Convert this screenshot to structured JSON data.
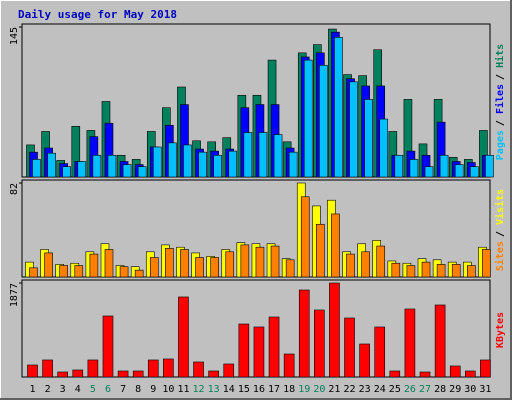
{
  "chart_data": [
    {
      "type": "bar",
      "title": "Daily usage for May 2018",
      "categories": [
        "1",
        "2",
        "3",
        "4",
        "5",
        "6",
        "7",
        "8",
        "9",
        "10",
        "11",
        "12",
        "13",
        "14",
        "15",
        "16",
        "17",
        "18",
        "19",
        "20",
        "21",
        "22",
        "23",
        "24",
        "25",
        "26",
        "27",
        "28",
        "29",
        "30",
        "31"
      ],
      "category_colors": [
        "#000000",
        "#000000",
        "#000000",
        "#000000",
        "#00805c",
        "#00805c",
        "#000000",
        "#000000",
        "#000000",
        "#000000",
        "#000000",
        "#00805c",
        "#00805c",
        "#000000",
        "#000000",
        "#000000",
        "#000000",
        "#000000",
        "#00805c",
        "#00805c",
        "#000000",
        "#000000",
        "#000000",
        "#000000",
        "#000000",
        "#00805c",
        "#00805c",
        "#000000",
        "#000000",
        "#000000",
        "#000000"
      ],
      "legend_separator": "/",
      "ylim": [
        0,
        145
      ],
      "yticks": [
        145
      ],
      "series": [
        {
          "name": "Hits",
          "color": "#00805c",
          "values": [
            31,
            44,
            16,
            49,
            45,
            73,
            21,
            17,
            44,
            67,
            87,
            35,
            34,
            38,
            79,
            79,
            113,
            34,
            120,
            128,
            143,
            99,
            98,
            123,
            44,
            75,
            32,
            75,
            19,
            17,
            45
          ]
        },
        {
          "name": "Files",
          "color": "#0000ff",
          "values": [
            24,
            28,
            13,
            15,
            39,
            52,
            15,
            12,
            29,
            50,
            70,
            27,
            25,
            27,
            67,
            70,
            70,
            28,
            116,
            120,
            140,
            95,
            88,
            88,
            21,
            25,
            21,
            53,
            15,
            14,
            21
          ]
        },
        {
          "name": "Pages",
          "color": "#00c0ff",
          "values": [
            17,
            23,
            10,
            15,
            21,
            21,
            12,
            10,
            29,
            33,
            31,
            24,
            21,
            25,
            43,
            43,
            41,
            24,
            113,
            108,
            135,
            92,
            75,
            56,
            21,
            17,
            10,
            21,
            12,
            10,
            21
          ]
        }
      ]
    },
    {
      "type": "bar",
      "ylim": [
        0,
        82
      ],
      "yticks": [
        82
      ],
      "series": [
        {
          "name": "Visits",
          "color": "#ffff00",
          "values": [
            13,
            24,
            11,
            12,
            22,
            29,
            10,
            9,
            22,
            28,
            26,
            21,
            18,
            24,
            30,
            29,
            29,
            16,
            82,
            62,
            67,
            22,
            29,
            32,
            14,
            12,
            16,
            15,
            13,
            13,
            26
          ]
        },
        {
          "name": "Sites",
          "color": "#ff8000",
          "values": [
            8,
            21,
            10,
            10,
            20,
            24,
            9,
            6,
            17,
            25,
            24,
            17,
            17,
            22,
            28,
            26,
            27,
            15,
            70,
            46,
            55,
            20,
            22,
            27,
            12,
            10,
            13,
            11,
            11,
            10,
            24
          ]
        }
      ]
    },
    {
      "type": "bar",
      "ylim": [
        0,
        1877
      ],
      "yticks": [
        1877
      ],
      "series": [
        {
          "name": "KBytes",
          "color": "#ff0000",
          "values": [
            240,
            340,
            100,
            140,
            340,
            1218,
            120,
            120,
            340,
            360,
            1598,
            300,
            120,
            260,
            1058,
            999,
            1198,
            459,
            1737,
            1338,
            1877,
            1178,
            659,
            999,
            120,
            1358,
            100,
            1438,
            220,
            120,
            340
          ]
        }
      ]
    }
  ]
}
